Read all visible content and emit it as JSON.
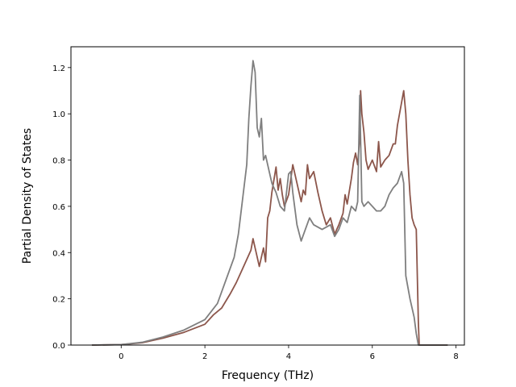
{
  "chart_data": {
    "type": "line",
    "xlabel": "Frequency (THz)",
    "ylabel": "Partial Density of States",
    "xlim": [
      -1.2,
      8.2
    ],
    "ylim": [
      0.0,
      1.29
    ],
    "xticks": [
      0,
      2,
      4,
      6,
      8
    ],
    "yticks": [
      0.0,
      0.2,
      0.4,
      0.6,
      0.8,
      1.0,
      1.2
    ],
    "grid": false,
    "legend": "none",
    "series": [
      {
        "color": "#8c564b",
        "x": [
          -0.7,
          0,
          0.5,
          1.0,
          1.5,
          2.0,
          2.2,
          2.4,
          2.6,
          2.75,
          2.9,
          3.0,
          3.1,
          3.15,
          3.2,
          3.3,
          3.4,
          3.45,
          3.5,
          3.55,
          3.6,
          3.7,
          3.75,
          3.8,
          3.85,
          3.9,
          4.0,
          4.1,
          4.2,
          4.3,
          4.35,
          4.4,
          4.45,
          4.5,
          4.6,
          4.7,
          4.8,
          4.9,
          5.0,
          5.1,
          5.2,
          5.3,
          5.35,
          5.4,
          5.5,
          5.55,
          5.6,
          5.65,
          5.7,
          5.72,
          5.75,
          5.8,
          5.85,
          5.9,
          6.0,
          6.1,
          6.15,
          6.2,
          6.3,
          6.4,
          6.5,
          6.55,
          6.6,
          6.7,
          6.75,
          6.8,
          6.85,
          6.9,
          6.95,
          7.0,
          7.05,
          7.1,
          7.12,
          7.15,
          7.3,
          7.8
        ],
        "y": [
          0,
          0.002,
          0.01,
          0.03,
          0.055,
          0.09,
          0.13,
          0.16,
          0.22,
          0.27,
          0.33,
          0.37,
          0.41,
          0.46,
          0.42,
          0.34,
          0.42,
          0.36,
          0.55,
          0.58,
          0.66,
          0.77,
          0.67,
          0.72,
          0.65,
          0.6,
          0.65,
          0.78,
          0.7,
          0.62,
          0.67,
          0.65,
          0.78,
          0.72,
          0.75,
          0.66,
          0.58,
          0.52,
          0.55,
          0.48,
          0.52,
          0.57,
          0.65,
          0.61,
          0.72,
          0.79,
          0.83,
          0.78,
          0.9,
          1.1,
          1.0,
          0.92,
          0.8,
          0.76,
          0.8,
          0.75,
          0.88,
          0.77,
          0.8,
          0.82,
          0.87,
          0.87,
          0.95,
          1.05,
          1.1,
          1.0,
          0.8,
          0.65,
          0.55,
          0.52,
          0.5,
          0.1,
          0.0,
          0.0,
          0.0,
          0.0
        ]
      },
      {
        "color": "#7f7f7f",
        "x": [
          -0.7,
          0,
          0.5,
          1.0,
          1.5,
          2.0,
          2.3,
          2.5,
          2.7,
          2.8,
          2.9,
          3.0,
          3.05,
          3.1,
          3.15,
          3.2,
          3.25,
          3.3,
          3.35,
          3.4,
          3.45,
          3.5,
          3.6,
          3.7,
          3.8,
          3.9,
          4.0,
          4.05,
          4.1,
          4.2,
          4.3,
          4.4,
          4.5,
          4.6,
          4.8,
          5.0,
          5.1,
          5.2,
          5.3,
          5.4,
          5.5,
          5.6,
          5.65,
          5.7,
          5.75,
          5.8,
          5.9,
          6.0,
          6.1,
          6.2,
          6.3,
          6.4,
          6.5,
          6.6,
          6.7,
          6.75,
          6.8,
          6.85,
          6.9,
          7.0,
          7.05,
          7.1,
          7.12,
          7.15,
          7.3,
          7.8
        ],
        "y": [
          0,
          0.002,
          0.012,
          0.035,
          0.065,
          0.11,
          0.18,
          0.28,
          0.38,
          0.48,
          0.63,
          0.78,
          0.98,
          1.12,
          1.23,
          1.18,
          0.94,
          0.9,
          0.98,
          0.8,
          0.82,
          0.78,
          0.7,
          0.66,
          0.6,
          0.58,
          0.74,
          0.75,
          0.66,
          0.52,
          0.45,
          0.5,
          0.55,
          0.52,
          0.5,
          0.52,
          0.47,
          0.5,
          0.55,
          0.53,
          0.6,
          0.58,
          0.62,
          1.08,
          0.62,
          0.6,
          0.62,
          0.6,
          0.58,
          0.58,
          0.6,
          0.65,
          0.68,
          0.7,
          0.75,
          0.7,
          0.3,
          0.25,
          0.2,
          0.12,
          0.05,
          0.0,
          0.0,
          0.0,
          0.0,
          0.0
        ]
      }
    ]
  }
}
